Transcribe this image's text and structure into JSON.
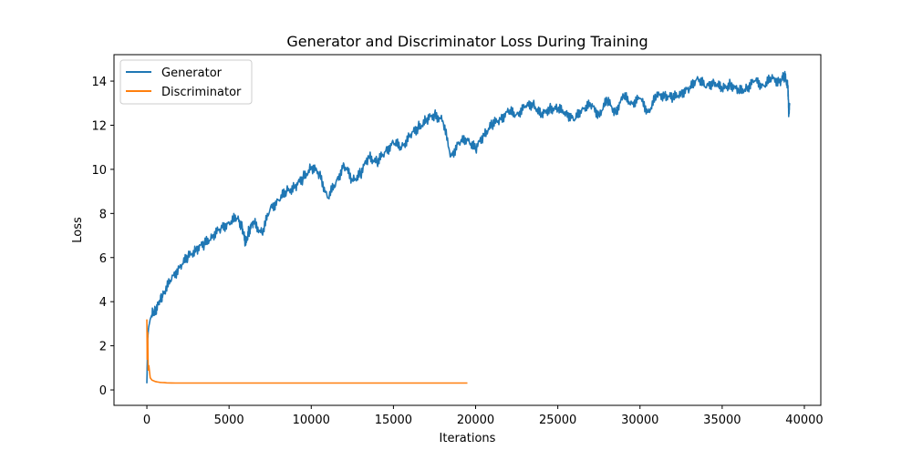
{
  "chart_data": {
    "type": "line",
    "title": "Generator and Discriminator Loss During Training",
    "xlabel": "Iterations",
    "ylabel": "Loss",
    "xlim": [
      -2000,
      41000
    ],
    "ylim": [
      -0.7,
      15.2
    ],
    "xticks": [
      0,
      5000,
      10000,
      15000,
      20000,
      25000,
      30000,
      35000,
      40000
    ],
    "yticks": [
      0,
      2,
      4,
      6,
      8,
      10,
      12,
      14
    ],
    "grid": false,
    "legend": "top-left",
    "series": [
      {
        "name": "Generator",
        "color": "#1f77b4",
        "x": [
          0,
          50,
          100,
          200,
          300,
          500,
          800,
          1000,
          1500,
          2000,
          2500,
          3000,
          3500,
          4000,
          4500,
          5000,
          5500,
          5800,
          6000,
          6200,
          6500,
          7000,
          7500,
          8000,
          8500,
          9000,
          9500,
          10000,
          10500,
          11000,
          11500,
          12000,
          12500,
          13000,
          13500,
          14000,
          14500,
          15000,
          15500,
          16000,
          16500,
          17000,
          17500,
          18000,
          18500,
          19000,
          19500,
          20000,
          20500,
          21000,
          21500,
          22000,
          22500,
          23000,
          23500,
          24000,
          24500,
          25000,
          25500,
          26000,
          26500,
          27000,
          27500,
          28000,
          28500,
          29000,
          29500,
          30000,
          30500,
          31000,
          31500,
          32000,
          32500,
          33000,
          33500,
          34000,
          34500,
          35000,
          35500,
          36000,
          36500,
          37000,
          37500,
          38000,
          38500,
          38800,
          39000,
          39050,
          39100
        ],
        "values": [
          0.3,
          2.3,
          2.8,
          3.2,
          3.4,
          3.6,
          4.0,
          4.4,
          5.0,
          5.6,
          6.0,
          6.4,
          6.6,
          7.0,
          7.3,
          7.6,
          7.8,
          7.4,
          6.6,
          7.2,
          7.6,
          7.1,
          8.2,
          8.6,
          9.0,
          9.2,
          9.6,
          10.1,
          9.8,
          8.7,
          9.4,
          10.2,
          9.5,
          9.8,
          10.6,
          10.3,
          10.8,
          11.2,
          11.0,
          11.5,
          11.9,
          12.2,
          12.5,
          12.2,
          10.6,
          11.2,
          11.4,
          10.9,
          11.6,
          12.0,
          12.3,
          12.6,
          12.5,
          12.8,
          13.0,
          12.4,
          12.8,
          12.7,
          12.6,
          12.2,
          12.8,
          12.9,
          12.5,
          13.1,
          12.6,
          13.3,
          13.0,
          13.2,
          12.6,
          13.3,
          13.4,
          13.2,
          13.5,
          13.6,
          14.2,
          13.7,
          14.0,
          13.6,
          13.9,
          13.5,
          13.7,
          14.0,
          13.8,
          14.1,
          14.0,
          14.2,
          13.8,
          12.5,
          13.0
        ]
      },
      {
        "name": "Discriminator",
        "color": "#ff7f0e",
        "x": [
          0,
          20,
          50,
          80,
          120,
          200,
          300,
          500,
          800,
          1200,
          2000,
          5000,
          10000,
          15000,
          19500
        ],
        "values": [
          3.2,
          1.4,
          2.6,
          0.9,
          1.1,
          0.55,
          0.45,
          0.38,
          0.34,
          0.32,
          0.31,
          0.31,
          0.31,
          0.31,
          0.31
        ]
      }
    ]
  }
}
